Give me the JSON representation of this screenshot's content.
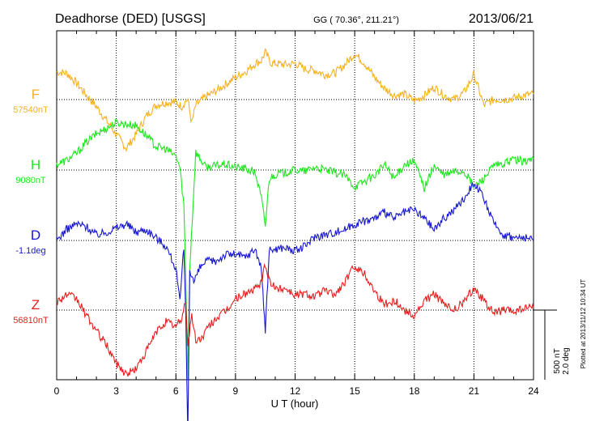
{
  "header": {
    "station": "Deadhorse (DED)  [USGS]",
    "coords": "GG ( 70.36°, 211.21°)",
    "date": "2013/06/21"
  },
  "scale": {
    "nt": "500 nT",
    "deg": "2.0 deg"
  },
  "plotted": "Plotted at 2013/11/12 10:34 UT",
  "chart_data": {
    "type": "line",
    "title": "",
    "xlabel": "U T (hour)",
    "ylabel": "",
    "xlim": [
      0,
      24
    ],
    "xticks": [
      "0",
      "3",
      "6",
      "9",
      "12",
      "15",
      "18",
      "21",
      "24"
    ],
    "grid": true,
    "series": [
      {
        "name": "F",
        "baseline_label": "57540nT",
        "color": "#f5b21e",
        "x": [
          0,
          0.5,
          1.0,
          1.5,
          2.0,
          2.5,
          3.0,
          3.5,
          4.0,
          4.5,
          5.0,
          5.5,
          6.0,
          6.3,
          6.5,
          6.6,
          6.8,
          7.0,
          7.5,
          8.0,
          8.5,
          9.0,
          9.5,
          10.0,
          10.3,
          10.5,
          10.8,
          11.0,
          11.5,
          12.0,
          12.5,
          13.0,
          13.5,
          14.0,
          14.5,
          15.0,
          15.5,
          16.0,
          16.5,
          17.0,
          17.5,
          18.0,
          18.5,
          19.0,
          19.5,
          20.0,
          20.5,
          21.0,
          21.5,
          22.0,
          22.5,
          23.0,
          23.5,
          24.0
        ],
        "values": [
          200,
          190,
          120,
          30,
          -50,
          -150,
          -250,
          -350,
          -250,
          -120,
          -40,
          -20,
          -20,
          -50,
          -10,
          0,
          -170,
          -40,
          20,
          60,
          110,
          160,
          200,
          260,
          280,
          340,
          260,
          260,
          250,
          260,
          220,
          210,
          180,
          190,
          250,
          330,
          260,
          160,
          80,
          30,
          40,
          -10,
          30,
          90,
          30,
          0,
          50,
          180,
          -40,
          0,
          0,
          10,
          30,
          40
        ]
      },
      {
        "name": "H",
        "baseline_label": "9080nT",
        "color": "#1ee81e",
        "x": [
          0,
          0.5,
          1.0,
          1.5,
          2.0,
          2.5,
          3.0,
          3.5,
          4.0,
          4.5,
          5.0,
          5.5,
          6.0,
          6.2,
          6.4,
          6.5,
          6.6,
          6.7,
          7.0,
          7.5,
          8.0,
          8.5,
          9.0,
          9.5,
          10.0,
          10.3,
          10.5,
          10.7,
          11.0,
          11.5,
          12.0,
          12.5,
          13.0,
          13.5,
          14.0,
          14.5,
          15.0,
          15.5,
          16.0,
          16.5,
          17.0,
          17.5,
          18.0,
          18.5,
          19.0,
          19.5,
          20.0,
          20.5,
          21.0,
          21.5,
          22.0,
          22.5,
          23.0,
          23.5,
          24.0
        ],
        "values": [
          40,
          70,
          120,
          200,
          260,
          300,
          340,
          330,
          320,
          250,
          170,
          150,
          100,
          20,
          -250,
          -780,
          -1500,
          -700,
          130,
          20,
          30,
          40,
          20,
          10,
          -20,
          -200,
          -400,
          -60,
          -30,
          -20,
          0,
          -10,
          20,
          0,
          -20,
          -40,
          -120,
          -80,
          -40,
          40,
          -60,
          40,
          60,
          -130,
          30,
          -40,
          -10,
          -10,
          -120,
          -60,
          30,
          40,
          80,
          60,
          80
        ]
      },
      {
        "name": "D",
        "baseline_label": "-1.1deg",
        "color": "#1717d1",
        "x": [
          0,
          0.5,
          1.0,
          1.5,
          2.0,
          2.5,
          3.0,
          3.5,
          4.0,
          4.5,
          5.0,
          5.5,
          6.0,
          6.2,
          6.4,
          6.5,
          6.6,
          6.7,
          6.9,
          7.2,
          7.5,
          8.0,
          8.5,
          9.0,
          9.5,
          10.0,
          10.3,
          10.5,
          10.7,
          11.0,
          11.5,
          12.0,
          12.5,
          13.0,
          13.5,
          14.0,
          14.5,
          15.0,
          15.5,
          16.0,
          16.5,
          17.0,
          17.5,
          18.0,
          18.5,
          19.0,
          19.5,
          20.0,
          20.5,
          21.0,
          21.5,
          22.0,
          22.5,
          23.0,
          23.5,
          24.0
        ],
        "values": [
          0,
          80,
          120,
          100,
          40,
          60,
          90,
          120,
          60,
          80,
          20,
          -40,
          -200,
          -450,
          -50,
          -550,
          -1400,
          -200,
          -300,
          -200,
          -150,
          -150,
          -100,
          -100,
          -120,
          -60,
          -200,
          -650,
          -70,
          -60,
          -50,
          -80,
          -40,
          30,
          40,
          60,
          80,
          120,
          140,
          160,
          200,
          160,
          200,
          220,
          160,
          80,
          160,
          220,
          300,
          420,
          300,
          120,
          40,
          20,
          20,
          0
        ]
      },
      {
        "name": "Z",
        "baseline_label": "56810nT",
        "color": "#e81e1e",
        "x": [
          0,
          0.5,
          1.0,
          1.5,
          2.0,
          2.5,
          3.0,
          3.5,
          4.0,
          4.5,
          5.0,
          5.5,
          6.0,
          6.3,
          6.5,
          6.6,
          6.8,
          7.0,
          7.3,
          7.6,
          8.0,
          8.5,
          9.0,
          9.5,
          10.0,
          10.3,
          10.5,
          10.7,
          11.0,
          11.5,
          12.0,
          12.5,
          13.0,
          13.5,
          14.0,
          14.5,
          15.0,
          15.5,
          16.0,
          16.5,
          17.0,
          17.5,
          18.0,
          18.5,
          19.0,
          19.5,
          20.0,
          20.5,
          21.0,
          21.5,
          22.0,
          22.5,
          23.0,
          23.5,
          24.0
        ],
        "values": [
          60,
          110,
          80,
          -40,
          -150,
          -250,
          -380,
          -460,
          -420,
          -300,
          -160,
          -80,
          -120,
          -60,
          80,
          -250,
          -40,
          -220,
          -200,
          -130,
          -60,
          -10,
          80,
          120,
          150,
          200,
          320,
          220,
          150,
          160,
          110,
          120,
          100,
          140,
          110,
          200,
          320,
          260,
          140,
          40,
          70,
          0,
          -40,
          60,
          120,
          40,
          0,
          60,
          160,
          70,
          -20,
          0,
          -10,
          10,
          20
        ]
      }
    ]
  }
}
